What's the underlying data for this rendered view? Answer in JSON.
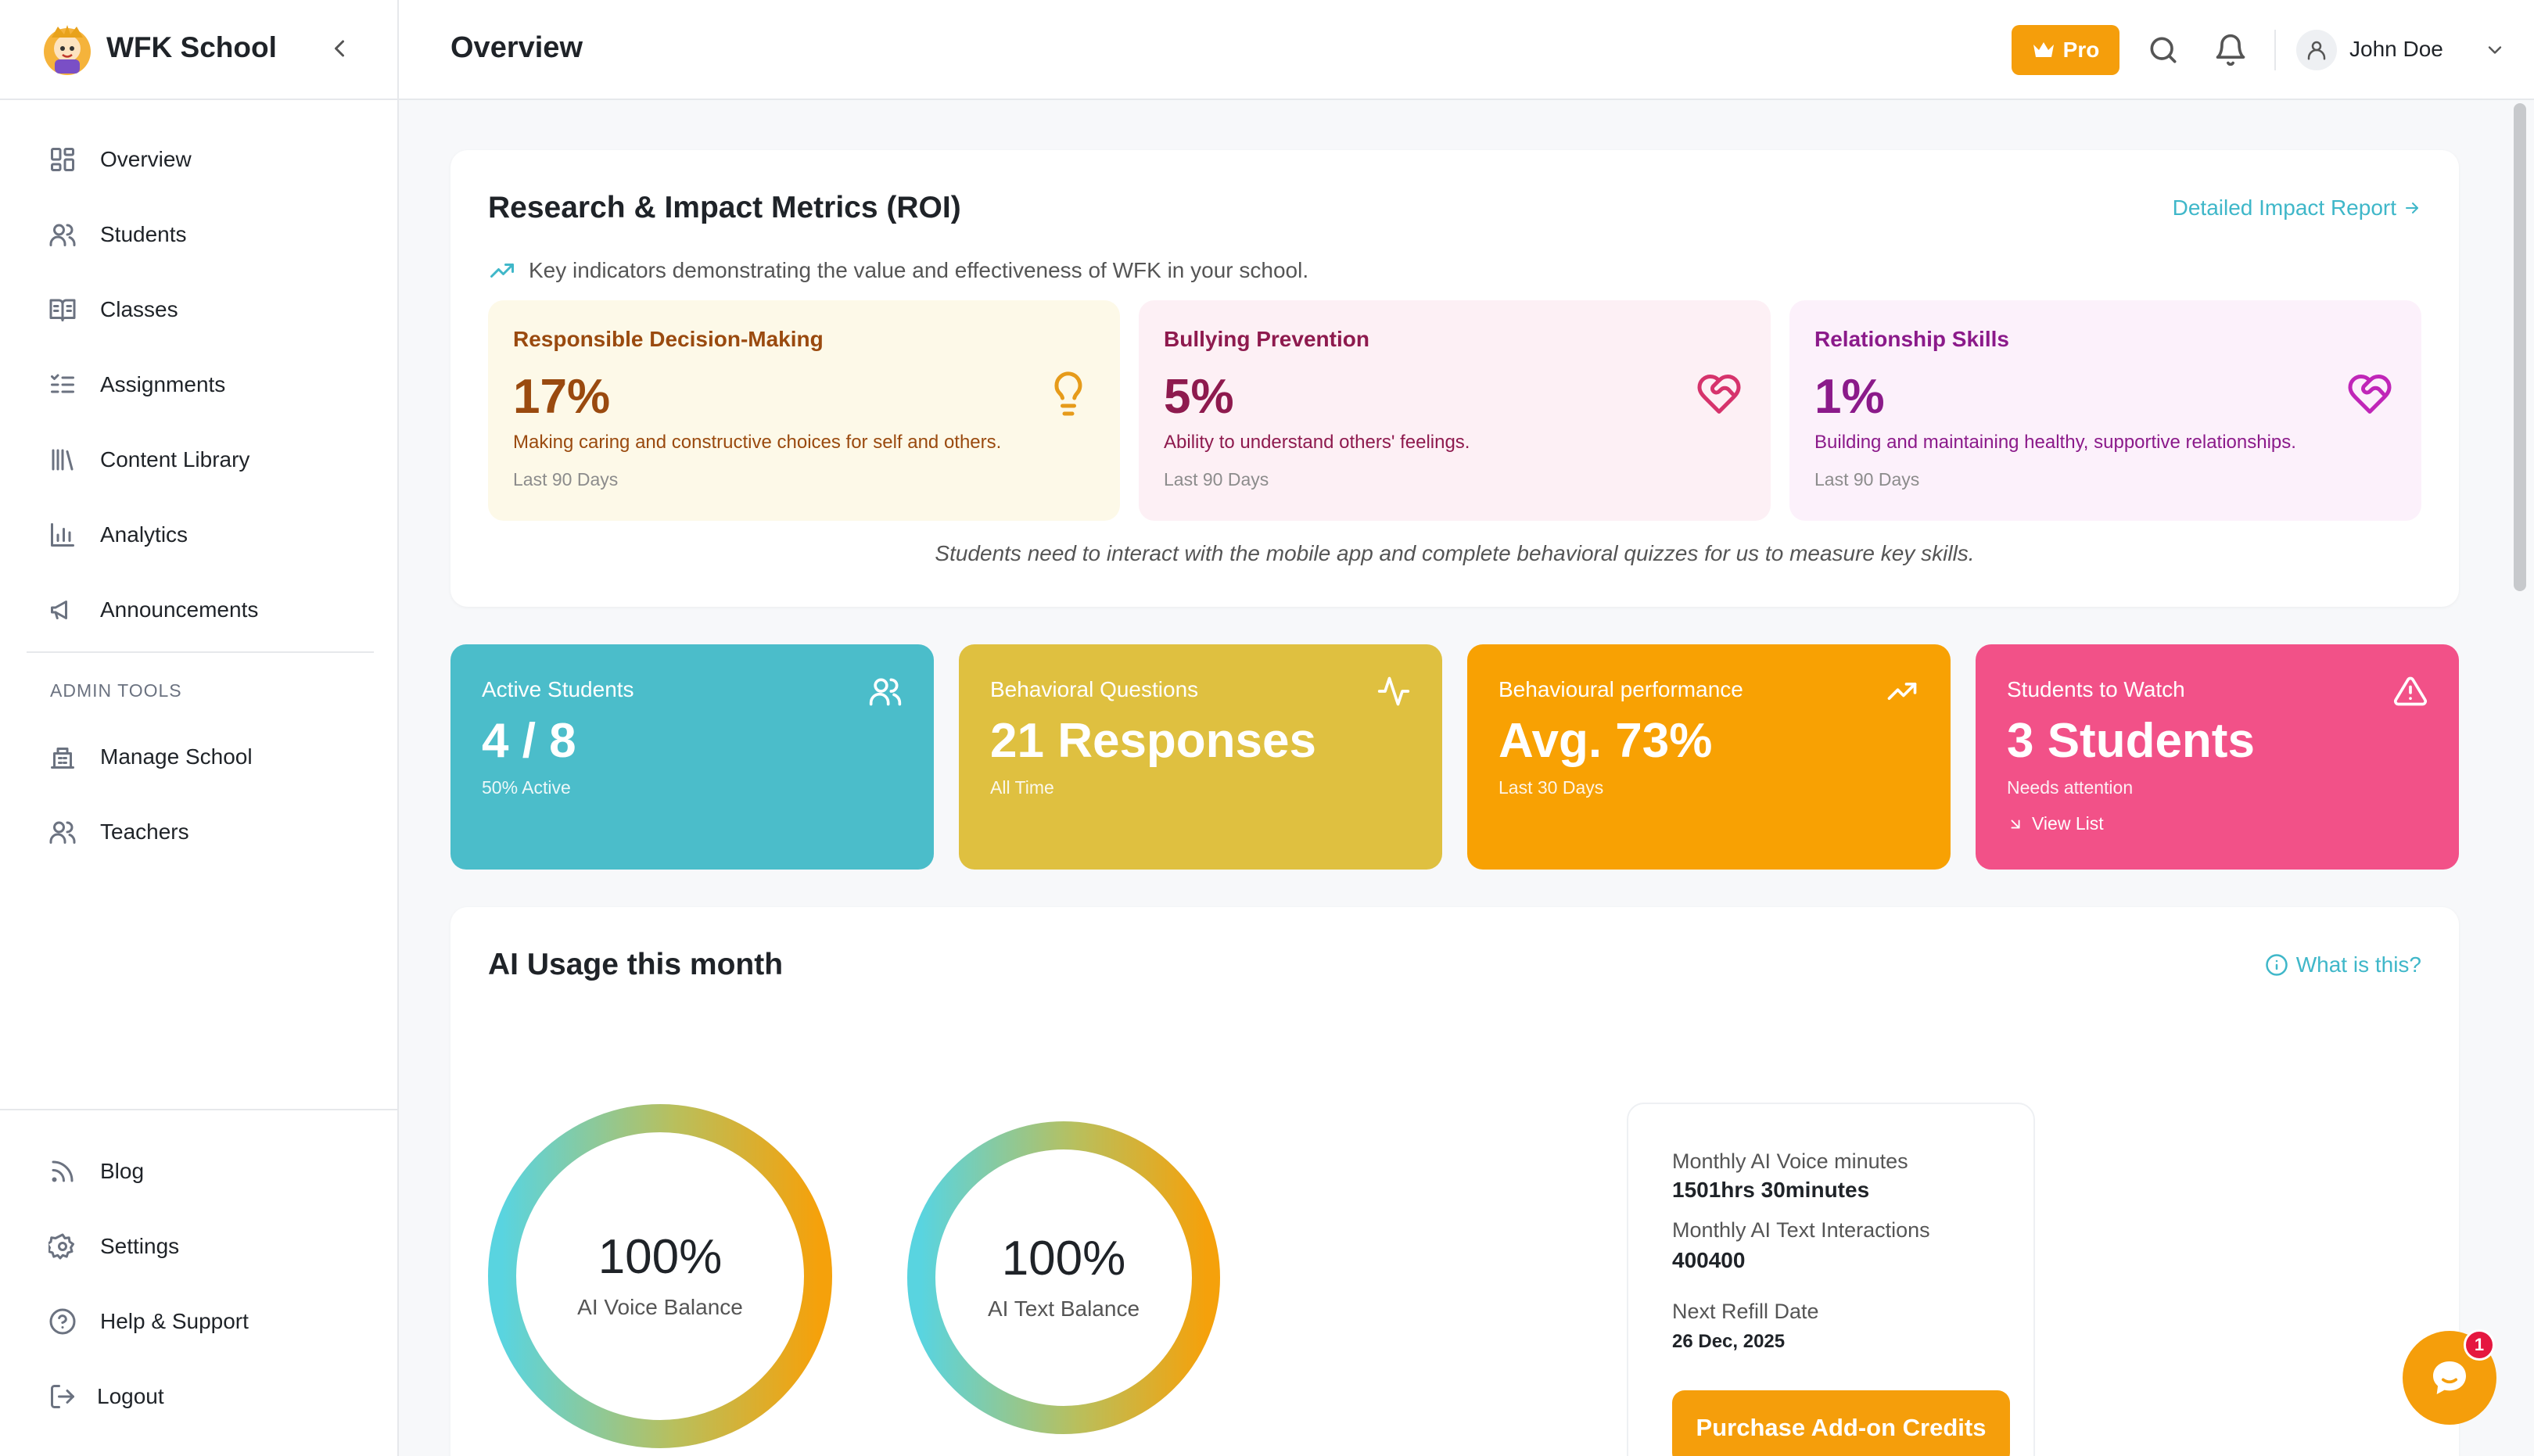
{
  "app": {
    "brand": "WFK School"
  },
  "sidebar": {
    "items": [
      {
        "label": "Overview",
        "icon": "grid-icon"
      },
      {
        "label": "Students",
        "icon": "users-icon"
      },
      {
        "label": "Classes",
        "icon": "book-icon"
      },
      {
        "label": "Assignments",
        "icon": "checklist-icon"
      },
      {
        "label": "Content Library",
        "icon": "library-icon"
      },
      {
        "label": "Analytics",
        "icon": "bar-chart-icon"
      },
      {
        "label": "Announcements",
        "icon": "megaphone-icon"
      }
    ],
    "admin_heading": "ADMIN TOOLS",
    "admin_items": [
      {
        "label": "Manage School",
        "icon": "building-icon"
      },
      {
        "label": "Teachers",
        "icon": "users-icon"
      }
    ],
    "footer_items": [
      {
        "label": "Blog",
        "icon": "rss-icon"
      },
      {
        "label": "Settings",
        "icon": "gear-icon"
      },
      {
        "label": "Help & Support",
        "icon": "help-circle-icon"
      },
      {
        "label": "Logout",
        "icon": "logout-icon"
      }
    ]
  },
  "header": {
    "title": "Overview",
    "pro_label": "Pro",
    "user_name": "John Doe"
  },
  "roi": {
    "title": "Research & Impact Metrics (ROI)",
    "link": "Detailed Impact Report",
    "subtitle": "Key indicators demonstrating the value and effectiveness of WFK in your school.",
    "metrics": [
      {
        "title": "Responsible Decision-Making",
        "value": "17%",
        "desc": "Making caring and constructive choices for self and others.",
        "period": "Last 90 Days",
        "color": "#9a4a0f",
        "bg": "#fdf9e8",
        "icon": "lightbulb-icon"
      },
      {
        "title": "Bullying Prevention",
        "value": "5%",
        "desc": "Ability to understand others' feelings.",
        "period": "Last 90 Days",
        "color": "#8e1a4e",
        "bg": "#fdf0f5",
        "icon": "heart-handshake-icon"
      },
      {
        "title": "Relationship Skills",
        "value": "1%",
        "desc": "Building and maintaining healthy, supportive relationships.",
        "period": "Last 90 Days",
        "color": "#8b1a8a",
        "bg": "#fcf1fb",
        "icon": "heart-handshake-icon"
      }
    ],
    "note": "Students need to interact with the mobile app and complete behavioral quizzes for us to measure key skills."
  },
  "stats": [
    {
      "title": "Active Students",
      "value": "4 / 8",
      "sub": "50% Active",
      "color": "#4bbdca",
      "icon": "users-icon"
    },
    {
      "title": "Behavioral Questions",
      "value": "21 Responses",
      "sub": "All Time",
      "color": "#dfc040",
      "icon": "activity-icon"
    },
    {
      "title": "Behavioural performance",
      "value": "Avg. 73%",
      "sub": "Last 30 Days",
      "color": "#f8a103",
      "icon": "trending-up-icon"
    },
    {
      "title": "Students to Watch",
      "value": "3 Students",
      "sub": "Needs attention",
      "link": "View List",
      "color": "#f25188",
      "icon": "alert-triangle-icon"
    }
  ],
  "ai": {
    "title": "AI Usage this month",
    "help": "What is this?",
    "voice": {
      "percent": "100%",
      "label": "AI Voice Balance",
      "fraction": 1.0
    },
    "text": {
      "percent": "100%",
      "label": "AI Text Balance",
      "fraction": 1.0
    },
    "info": {
      "voice_label": "Monthly AI Voice minutes",
      "voice_value": "1501hrs 30minutes",
      "text_label": "Monthly AI Text Interactions",
      "text_value": "400400",
      "refill_label": "Next Refill Date",
      "refill_value": "26 Dec, 2025",
      "button": "Purchase Add-on Credits"
    }
  },
  "chat": {
    "badge": "1"
  }
}
